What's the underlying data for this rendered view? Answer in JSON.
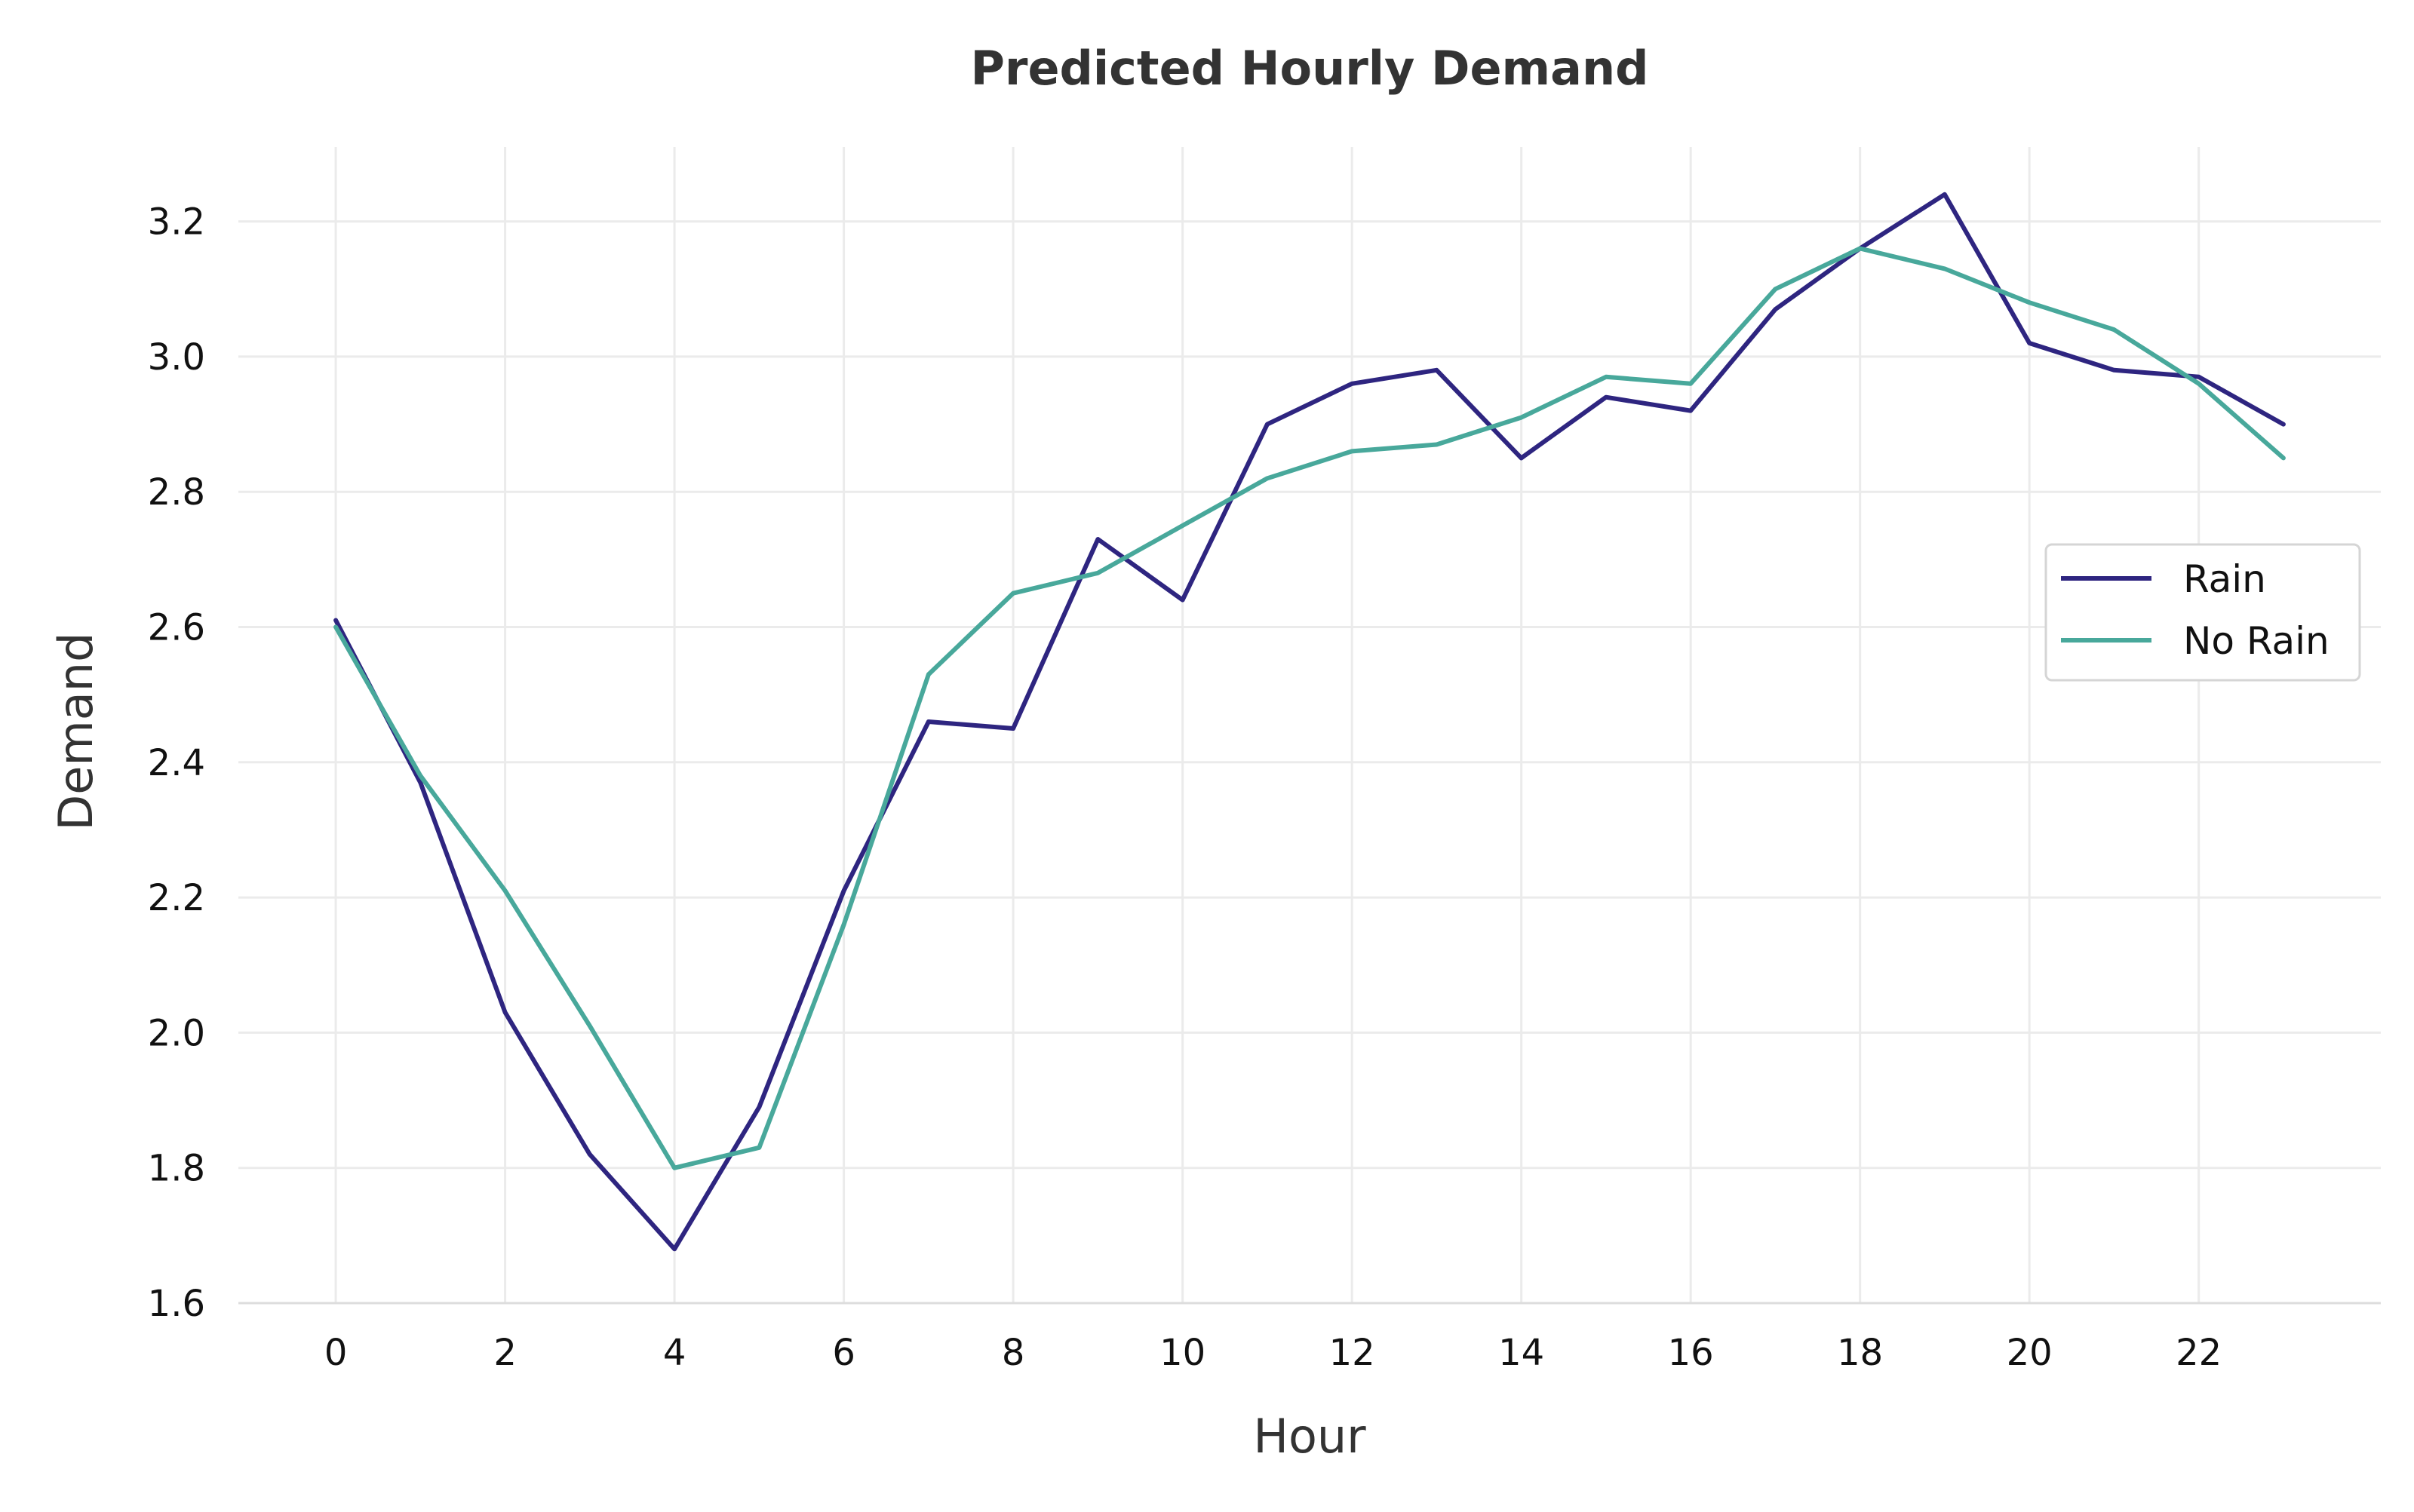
{
  "chart_data": {
    "type": "line",
    "title": "Predicted Hourly Demand",
    "xlabel": "Hour",
    "ylabel": "Demand",
    "x": [
      0,
      1,
      2,
      3,
      4,
      5,
      6,
      7,
      8,
      9,
      10,
      11,
      12,
      13,
      14,
      15,
      16,
      17,
      18,
      19,
      20,
      21,
      22,
      23
    ],
    "xlim": [
      -1.15,
      24.15
    ],
    "ylim": [
      1.6,
      3.31
    ],
    "xticks": [
      0,
      2,
      4,
      6,
      8,
      10,
      12,
      14,
      16,
      18,
      20,
      22
    ],
    "xtick_labels": [
      "0",
      "2",
      "4",
      "6",
      "8",
      "10",
      "12",
      "14",
      "16",
      "18",
      "20",
      "22"
    ],
    "yticks": [
      1.6,
      1.8,
      2.0,
      2.2,
      2.4,
      2.6,
      2.8,
      3.0,
      3.2
    ],
    "ytick_labels": [
      "1.6",
      "1.8",
      "2.0",
      "2.2",
      "2.4",
      "2.6",
      "2.8",
      "3.0",
      "3.2"
    ],
    "grid": true,
    "legend_position": "center-right",
    "series": [
      {
        "name": "Rain",
        "color": "#2e2580",
        "values": [
          2.61,
          2.37,
          2.03,
          1.82,
          1.68,
          1.89,
          2.21,
          2.46,
          2.45,
          2.73,
          2.64,
          2.9,
          2.96,
          2.98,
          2.85,
          2.94,
          2.92,
          3.07,
          3.16,
          3.24,
          3.02,
          2.98,
          2.97,
          2.9
        ]
      },
      {
        "name": "No Rain",
        "color": "#48a89b",
        "values": [
          2.6,
          2.38,
          2.21,
          2.01,
          1.8,
          1.83,
          2.16,
          2.53,
          2.65,
          2.68,
          2.75,
          2.82,
          2.86,
          2.87,
          2.91,
          2.97,
          2.96,
          3.1,
          3.16,
          3.13,
          3.08,
          3.04,
          2.96,
          2.85
        ]
      }
    ]
  }
}
